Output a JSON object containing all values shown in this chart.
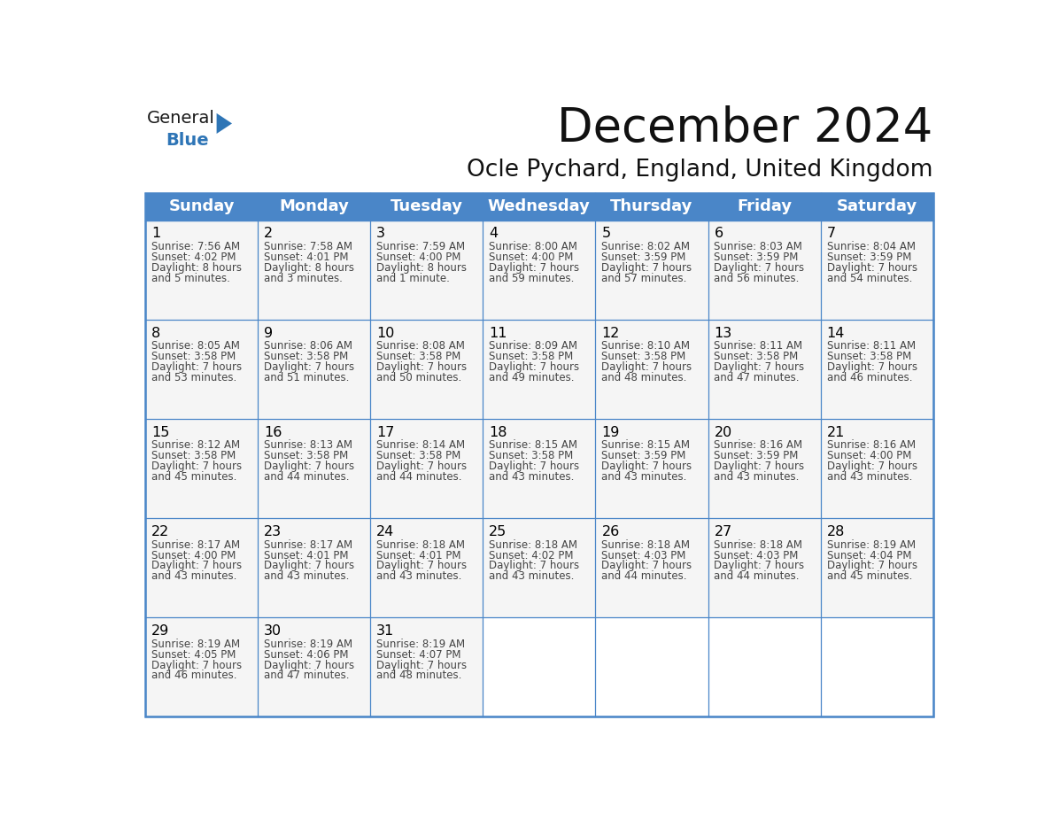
{
  "title": "December 2024",
  "subtitle": "Ocle Pychard, England, United Kingdom",
  "days_of_week": [
    "Sunday",
    "Monday",
    "Tuesday",
    "Wednesday",
    "Thursday",
    "Friday",
    "Saturday"
  ],
  "header_bg_color": "#4A86C8",
  "header_text_color": "#FFFFFF",
  "cell_bg_color": "#F5F5F5",
  "border_color": "#4A86C8",
  "day_num_color": "#000000",
  "cell_text_color": "#444444",
  "title_color": "#111111",
  "subtitle_color": "#111111",
  "logo_general_color": "#1a1a1a",
  "logo_blue_color": "#2E75B6",
  "logo_triangle_color": "#2E75B6",
  "calendar_data": [
    [
      {
        "day": 1,
        "sunrise": "7:56 AM",
        "sunset": "4:02 PM",
        "daylight_line1": "Daylight: 8 hours",
        "daylight_line2": "and 5 minutes."
      },
      {
        "day": 2,
        "sunrise": "7:58 AM",
        "sunset": "4:01 PM",
        "daylight_line1": "Daylight: 8 hours",
        "daylight_line2": "and 3 minutes."
      },
      {
        "day": 3,
        "sunrise": "7:59 AM",
        "sunset": "4:00 PM",
        "daylight_line1": "Daylight: 8 hours",
        "daylight_line2": "and 1 minute."
      },
      {
        "day": 4,
        "sunrise": "8:00 AM",
        "sunset": "4:00 PM",
        "daylight_line1": "Daylight: 7 hours",
        "daylight_line2": "and 59 minutes."
      },
      {
        "day": 5,
        "sunrise": "8:02 AM",
        "sunset": "3:59 PM",
        "daylight_line1": "Daylight: 7 hours",
        "daylight_line2": "and 57 minutes."
      },
      {
        "day": 6,
        "sunrise": "8:03 AM",
        "sunset": "3:59 PM",
        "daylight_line1": "Daylight: 7 hours",
        "daylight_line2": "and 56 minutes."
      },
      {
        "day": 7,
        "sunrise": "8:04 AM",
        "sunset": "3:59 PM",
        "daylight_line1": "Daylight: 7 hours",
        "daylight_line2": "and 54 minutes."
      }
    ],
    [
      {
        "day": 8,
        "sunrise": "8:05 AM",
        "sunset": "3:58 PM",
        "daylight_line1": "Daylight: 7 hours",
        "daylight_line2": "and 53 minutes."
      },
      {
        "day": 9,
        "sunrise": "8:06 AM",
        "sunset": "3:58 PM",
        "daylight_line1": "Daylight: 7 hours",
        "daylight_line2": "and 51 minutes."
      },
      {
        "day": 10,
        "sunrise": "8:08 AM",
        "sunset": "3:58 PM",
        "daylight_line1": "Daylight: 7 hours",
        "daylight_line2": "and 50 minutes."
      },
      {
        "day": 11,
        "sunrise": "8:09 AM",
        "sunset": "3:58 PM",
        "daylight_line1": "Daylight: 7 hours",
        "daylight_line2": "and 49 minutes."
      },
      {
        "day": 12,
        "sunrise": "8:10 AM",
        "sunset": "3:58 PM",
        "daylight_line1": "Daylight: 7 hours",
        "daylight_line2": "and 48 minutes."
      },
      {
        "day": 13,
        "sunrise": "8:11 AM",
        "sunset": "3:58 PM",
        "daylight_line1": "Daylight: 7 hours",
        "daylight_line2": "and 47 minutes."
      },
      {
        "day": 14,
        "sunrise": "8:11 AM",
        "sunset": "3:58 PM",
        "daylight_line1": "Daylight: 7 hours",
        "daylight_line2": "and 46 minutes."
      }
    ],
    [
      {
        "day": 15,
        "sunrise": "8:12 AM",
        "sunset": "3:58 PM",
        "daylight_line1": "Daylight: 7 hours",
        "daylight_line2": "and 45 minutes."
      },
      {
        "day": 16,
        "sunrise": "8:13 AM",
        "sunset": "3:58 PM",
        "daylight_line1": "Daylight: 7 hours",
        "daylight_line2": "and 44 minutes."
      },
      {
        "day": 17,
        "sunrise": "8:14 AM",
        "sunset": "3:58 PM",
        "daylight_line1": "Daylight: 7 hours",
        "daylight_line2": "and 44 minutes."
      },
      {
        "day": 18,
        "sunrise": "8:15 AM",
        "sunset": "3:58 PM",
        "daylight_line1": "Daylight: 7 hours",
        "daylight_line2": "and 43 minutes."
      },
      {
        "day": 19,
        "sunrise": "8:15 AM",
        "sunset": "3:59 PM",
        "daylight_line1": "Daylight: 7 hours",
        "daylight_line2": "and 43 minutes."
      },
      {
        "day": 20,
        "sunrise": "8:16 AM",
        "sunset": "3:59 PM",
        "daylight_line1": "Daylight: 7 hours",
        "daylight_line2": "and 43 minutes."
      },
      {
        "day": 21,
        "sunrise": "8:16 AM",
        "sunset": "4:00 PM",
        "daylight_line1": "Daylight: 7 hours",
        "daylight_line2": "and 43 minutes."
      }
    ],
    [
      {
        "day": 22,
        "sunrise": "8:17 AM",
        "sunset": "4:00 PM",
        "daylight_line1": "Daylight: 7 hours",
        "daylight_line2": "and 43 minutes."
      },
      {
        "day": 23,
        "sunrise": "8:17 AM",
        "sunset": "4:01 PM",
        "daylight_line1": "Daylight: 7 hours",
        "daylight_line2": "and 43 minutes."
      },
      {
        "day": 24,
        "sunrise": "8:18 AM",
        "sunset": "4:01 PM",
        "daylight_line1": "Daylight: 7 hours",
        "daylight_line2": "and 43 minutes."
      },
      {
        "day": 25,
        "sunrise": "8:18 AM",
        "sunset": "4:02 PM",
        "daylight_line1": "Daylight: 7 hours",
        "daylight_line2": "and 43 minutes."
      },
      {
        "day": 26,
        "sunrise": "8:18 AM",
        "sunset": "4:03 PM",
        "daylight_line1": "Daylight: 7 hours",
        "daylight_line2": "and 44 minutes."
      },
      {
        "day": 27,
        "sunrise": "8:18 AM",
        "sunset": "4:03 PM",
        "daylight_line1": "Daylight: 7 hours",
        "daylight_line2": "and 44 minutes."
      },
      {
        "day": 28,
        "sunrise": "8:19 AM",
        "sunset": "4:04 PM",
        "daylight_line1": "Daylight: 7 hours",
        "daylight_line2": "and 45 minutes."
      }
    ],
    [
      {
        "day": 29,
        "sunrise": "8:19 AM",
        "sunset": "4:05 PM",
        "daylight_line1": "Daylight: 7 hours",
        "daylight_line2": "and 46 minutes."
      },
      {
        "day": 30,
        "sunrise": "8:19 AM",
        "sunset": "4:06 PM",
        "daylight_line1": "Daylight: 7 hours",
        "daylight_line2": "and 47 minutes."
      },
      {
        "day": 31,
        "sunrise": "8:19 AM",
        "sunset": "4:07 PM",
        "daylight_line1": "Daylight: 7 hours",
        "daylight_line2": "and 48 minutes."
      },
      null,
      null,
      null,
      null
    ]
  ]
}
